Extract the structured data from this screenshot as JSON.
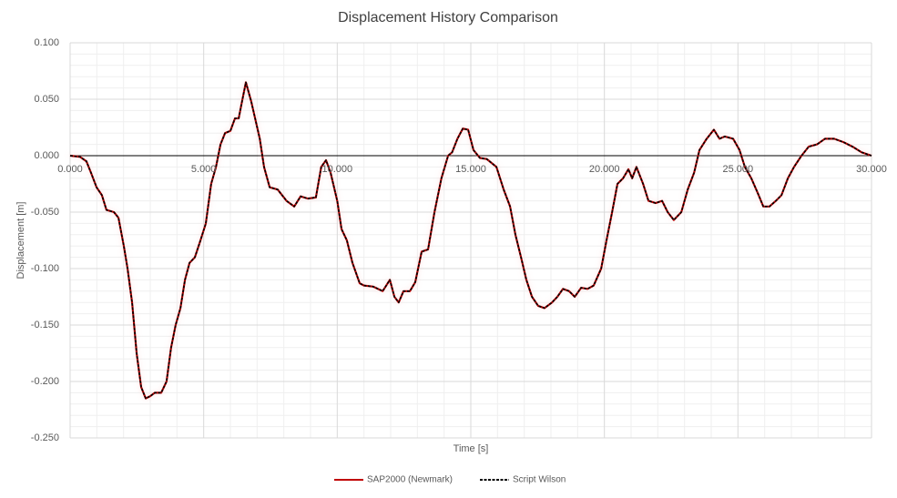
{
  "chart_data": {
    "type": "line",
    "title": "Displacement History Comparison",
    "xlabel": "Time [s]",
    "ylabel": "Displacement [m]",
    "x": [
      0,
      0.37,
      0.61,
      0.78,
      0.99,
      1.19,
      1.36,
      1.64,
      1.81,
      2.01,
      2.15,
      2.32,
      2.49,
      2.66,
      2.83,
      3.0,
      3.17,
      3.41,
      3.61,
      3.78,
      3.95,
      4.13,
      4.3,
      4.47,
      4.67,
      4.88,
      5.08,
      5.28,
      5.46,
      5.63,
      5.8,
      6.0,
      6.17,
      6.31,
      6.41,
      6.58,
      6.78,
      7.1,
      7.26,
      7.47,
      7.77,
      8.1,
      8.39,
      8.63,
      8.9,
      9.2,
      9.4,
      9.58,
      9.75,
      10.0,
      10.16,
      10.36,
      10.57,
      10.84,
      11.0,
      11.35,
      11.7,
      11.97,
      12.14,
      12.3,
      12.48,
      12.72,
      12.92,
      13.16,
      13.4,
      13.64,
      13.9,
      14.15,
      14.3,
      14.5,
      14.7,
      14.9,
      15.1,
      15.34,
      15.6,
      15.96,
      16.23,
      16.47,
      16.67,
      16.88,
      17.08,
      17.29,
      17.52,
      17.76,
      18.04,
      18.24,
      18.45,
      18.68,
      18.89,
      19.13,
      19.37,
      19.6,
      19.88,
      20.08,
      20.29,
      20.49,
      20.7,
      20.9,
      21.04,
      21.2,
      21.45,
      21.65,
      21.92,
      22.16,
      22.37,
      22.6,
      22.88,
      23.12,
      23.36,
      23.56,
      23.83,
      24.1,
      24.31,
      24.51,
      24.82,
      25.06,
      25.26,
      25.5,
      25.74,
      25.95,
      26.18,
      26.42,
      26.63,
      26.87,
      27.1,
      27.38,
      27.65,
      27.96,
      28.26,
      28.6,
      28.95,
      29.29,
      29.63,
      30.0
    ],
    "series": [
      {
        "name": "SAP2000 (Newmark)",
        "color": "#c00000",
        "dash": false,
        "values": [
          0,
          -0.001,
          -0.005,
          -0.015,
          -0.028,
          -0.035,
          -0.048,
          -0.05,
          -0.055,
          -0.08,
          -0.1,
          -0.13,
          -0.175,
          -0.205,
          -0.215,
          -0.213,
          -0.21,
          -0.21,
          -0.2,
          -0.17,
          -0.15,
          -0.135,
          -0.11,
          -0.095,
          -0.09,
          -0.075,
          -0.06,
          -0.025,
          -0.01,
          0.01,
          0.02,
          0.022,
          0.033,
          0.033,
          0.045,
          0.065,
          0.048,
          0.015,
          -0.01,
          -0.028,
          -0.03,
          -0.04,
          -0.045,
          -0.036,
          -0.038,
          -0.037,
          -0.01,
          -0.004,
          -0.015,
          -0.04,
          -0.065,
          -0.075,
          -0.095,
          -0.113,
          -0.115,
          -0.116,
          -0.12,
          -0.11,
          -0.125,
          -0.13,
          -0.12,
          -0.12,
          -0.112,
          -0.085,
          -0.083,
          -0.05,
          -0.02,
          0.0,
          0.003,
          0.015,
          0.024,
          0.023,
          0.005,
          -0.002,
          -0.003,
          -0.01,
          -0.03,
          -0.045,
          -0.07,
          -0.09,
          -0.11,
          -0.125,
          -0.133,
          -0.135,
          -0.13,
          -0.125,
          -0.118,
          -0.12,
          -0.125,
          -0.117,
          -0.118,
          -0.115,
          -0.1,
          -0.075,
          -0.05,
          -0.025,
          -0.02,
          -0.012,
          -0.02,
          -0.01,
          -0.025,
          -0.04,
          -0.042,
          -0.04,
          -0.05,
          -0.057,
          -0.05,
          -0.03,
          -0.015,
          0.005,
          0.015,
          0.023,
          0.015,
          0.017,
          0.015,
          0.005,
          -0.01,
          -0.02,
          -0.033,
          -0.045,
          -0.045,
          -0.04,
          -0.035,
          -0.02,
          -0.01,
          0.0,
          0.008,
          0.01,
          0.015,
          0.015,
          0.012,
          0.008,
          0.003,
          0.0
        ]
      },
      {
        "name": "Script Wilson",
        "color": "#000000",
        "dash": true,
        "values": [
          0,
          -0.001,
          -0.005,
          -0.015,
          -0.028,
          -0.035,
          -0.048,
          -0.05,
          -0.055,
          -0.08,
          -0.1,
          -0.13,
          -0.175,
          -0.205,
          -0.215,
          -0.213,
          -0.21,
          -0.21,
          -0.2,
          -0.17,
          -0.15,
          -0.135,
          -0.11,
          -0.095,
          -0.09,
          -0.075,
          -0.06,
          -0.025,
          -0.01,
          0.01,
          0.02,
          0.022,
          0.033,
          0.033,
          0.045,
          0.065,
          0.048,
          0.015,
          -0.01,
          -0.028,
          -0.03,
          -0.04,
          -0.045,
          -0.036,
          -0.038,
          -0.037,
          -0.01,
          -0.004,
          -0.015,
          -0.04,
          -0.065,
          -0.075,
          -0.095,
          -0.113,
          -0.115,
          -0.116,
          -0.12,
          -0.11,
          -0.125,
          -0.13,
          -0.12,
          -0.12,
          -0.112,
          -0.085,
          -0.083,
          -0.05,
          -0.02,
          0.0,
          0.003,
          0.015,
          0.024,
          0.023,
          0.005,
          -0.002,
          -0.003,
          -0.01,
          -0.03,
          -0.045,
          -0.07,
          -0.09,
          -0.11,
          -0.125,
          -0.133,
          -0.135,
          -0.13,
          -0.125,
          -0.118,
          -0.12,
          -0.125,
          -0.117,
          -0.118,
          -0.115,
          -0.1,
          -0.075,
          -0.05,
          -0.025,
          -0.02,
          -0.012,
          -0.02,
          -0.01,
          -0.025,
          -0.04,
          -0.042,
          -0.04,
          -0.05,
          -0.057,
          -0.05,
          -0.03,
          -0.015,
          0.005,
          0.015,
          0.023,
          0.015,
          0.017,
          0.015,
          0.005,
          -0.01,
          -0.02,
          -0.033,
          -0.045,
          -0.045,
          -0.04,
          -0.035,
          -0.02,
          -0.01,
          0.0,
          0.008,
          0.01,
          0.015,
          0.015,
          0.012,
          0.008,
          0.003,
          0.0
        ]
      }
    ],
    "xlim": [
      0,
      30
    ],
    "ylim": [
      -0.25,
      0.1
    ],
    "xticks": [
      {
        "value": 0,
        "label": "0.000"
      },
      {
        "value": 5,
        "label": "5.000"
      },
      {
        "value": 10,
        "label": "10.000"
      },
      {
        "value": 15,
        "label": "15.000"
      },
      {
        "value": 20,
        "label": "20.000"
      },
      {
        "value": 25,
        "label": "25.000"
      },
      {
        "value": 30,
        "label": "30.000"
      }
    ],
    "yticks": [
      {
        "value": -0.25,
        "label": "-0.250"
      },
      {
        "value": -0.2,
        "label": "-0.200"
      },
      {
        "value": -0.15,
        "label": "-0.150"
      },
      {
        "value": -0.1,
        "label": "-0.100"
      },
      {
        "value": -0.05,
        "label": "-0.050"
      },
      {
        "value": 0,
        "label": "0.000"
      },
      {
        "value": 0.05,
        "label": "0.050"
      },
      {
        "value": 0.1,
        "label": "0.100"
      }
    ],
    "grid": true,
    "minor_grid": true,
    "legend": "bottom"
  }
}
